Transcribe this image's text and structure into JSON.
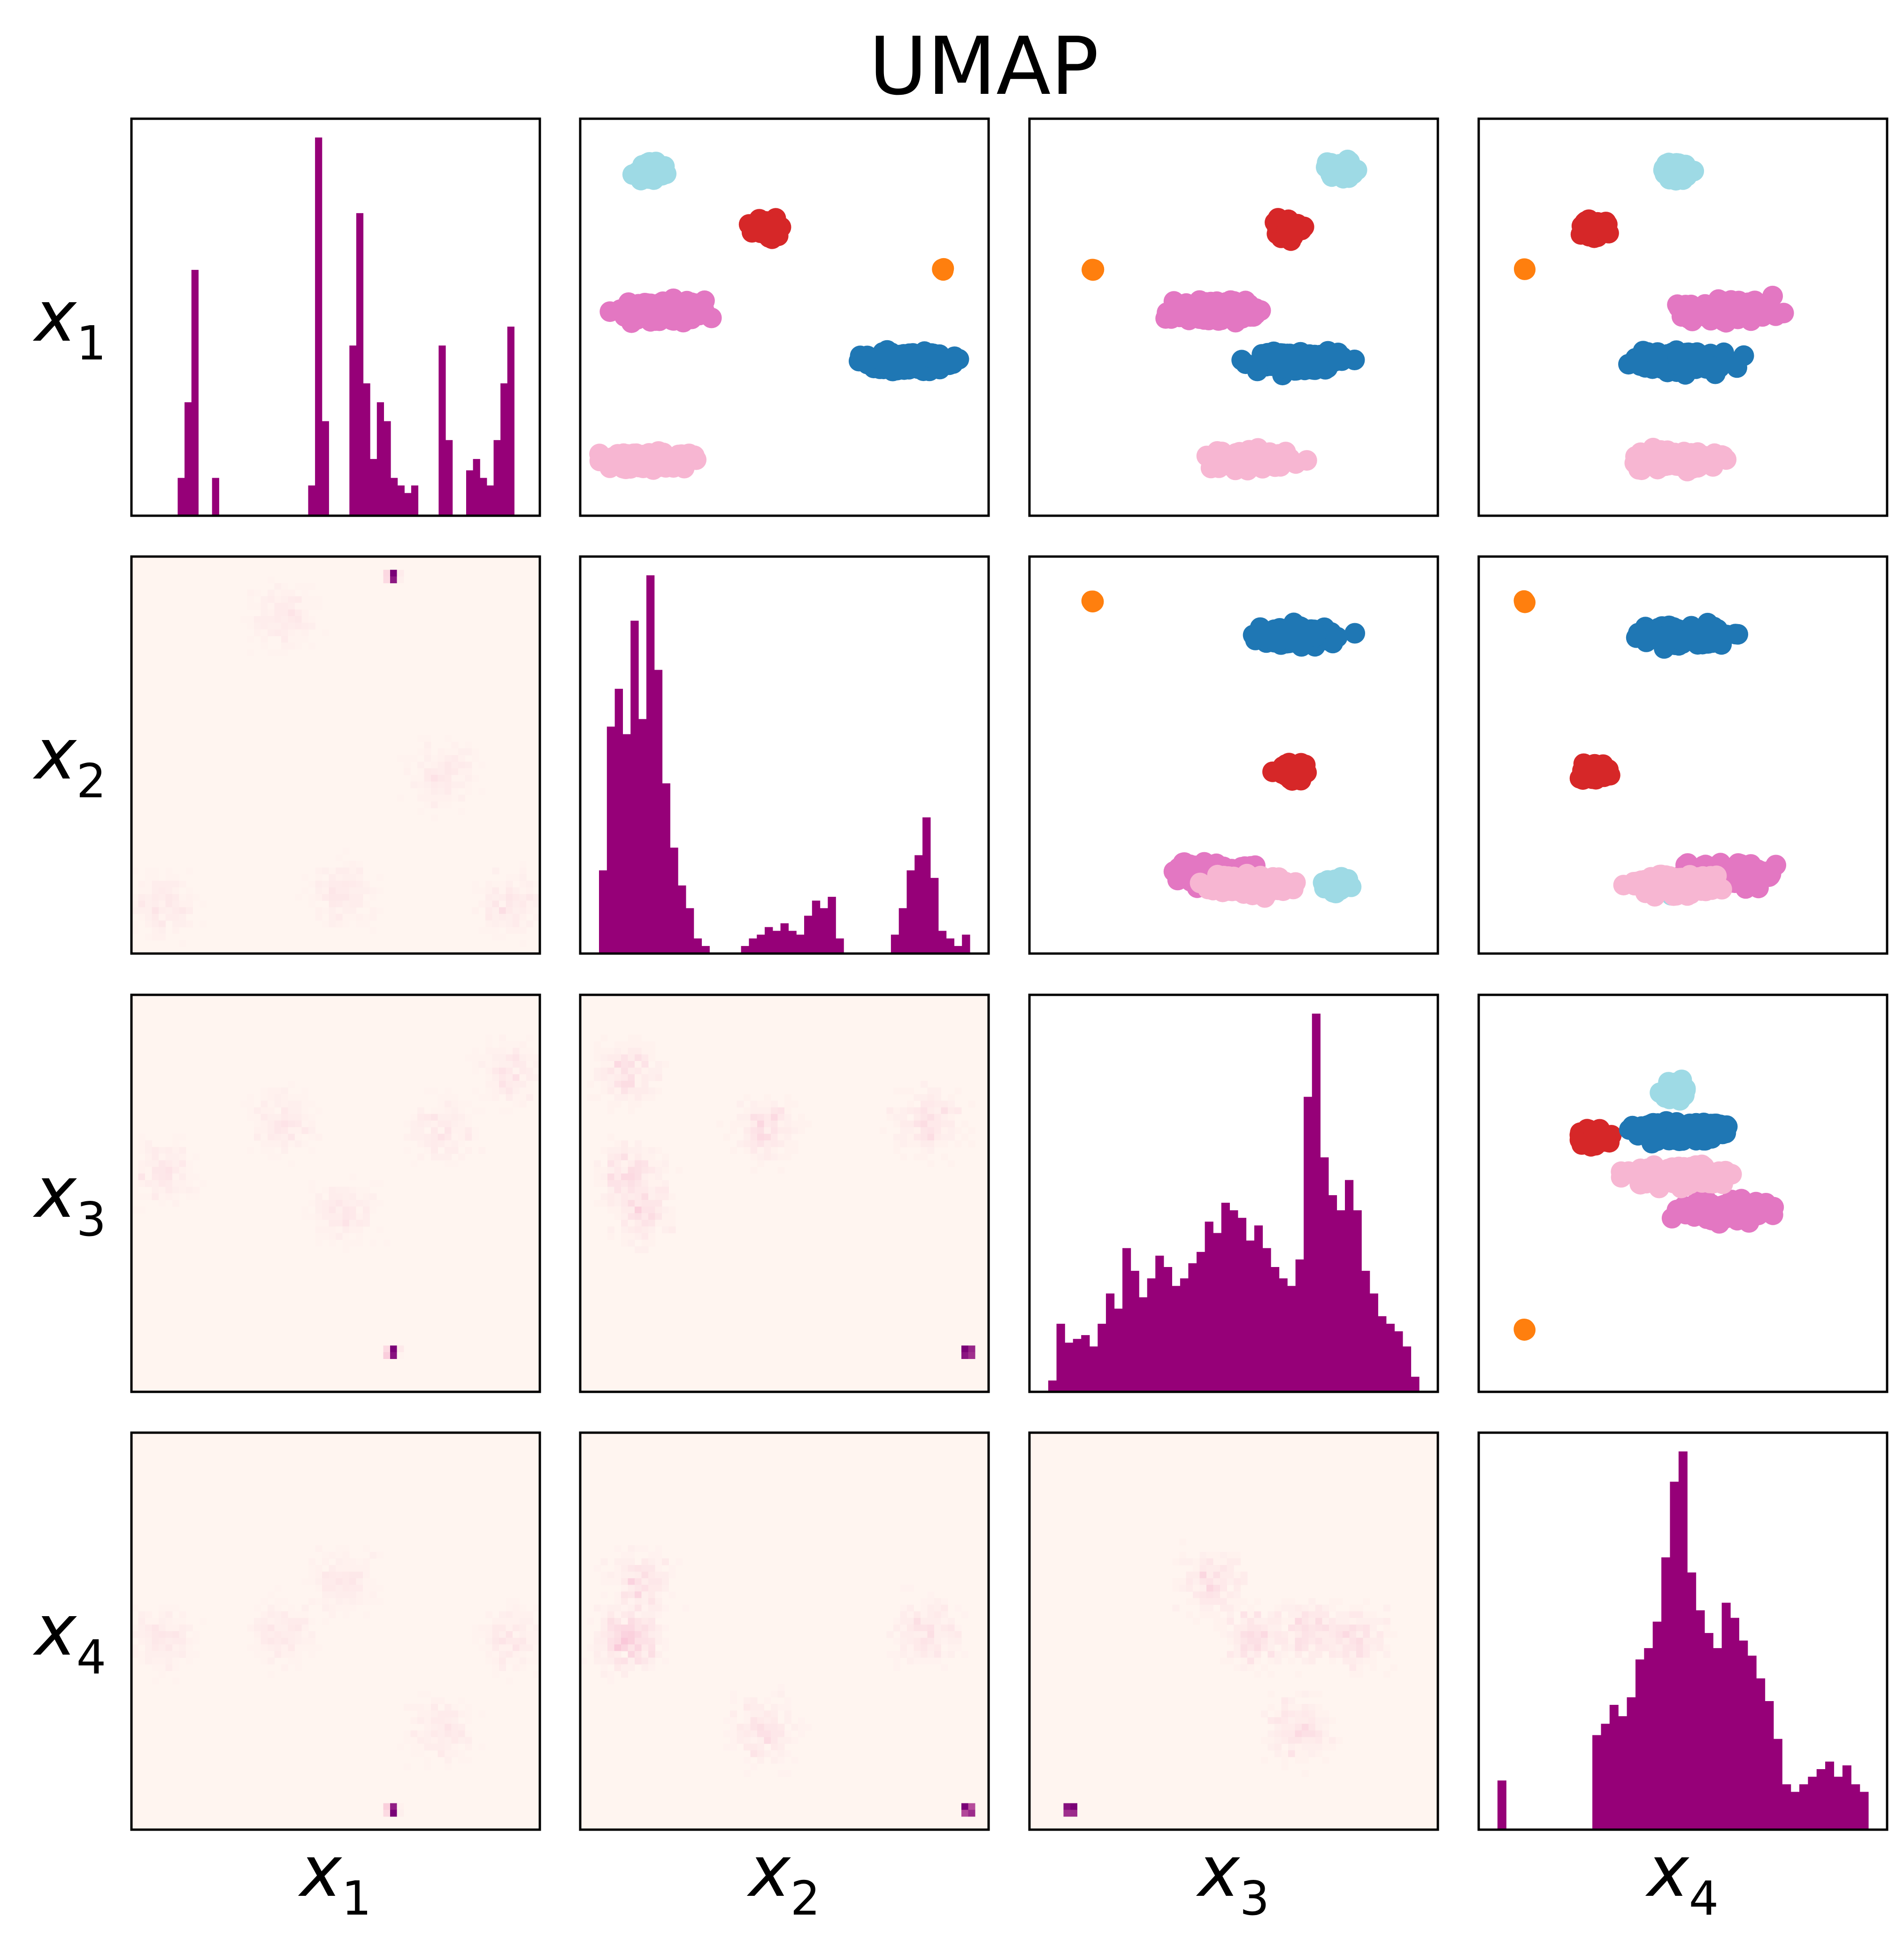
{
  "chart_data": {
    "type": "scatter",
    "title": "UMAP",
    "variables": [
      {
        "name": "x",
        "sub": "1"
      },
      {
        "name": "x",
        "sub": "2"
      },
      {
        "name": "x",
        "sub": "3"
      },
      {
        "name": "x",
        "sub": "4"
      }
    ],
    "colors": {
      "hist": "#960078",
      "heat_low": "#fff5f0",
      "heat_mid": "#f49ac1",
      "heat_high": "#7a0177",
      "blue": "#1f77b4",
      "orange": "#ff7f0e",
      "red": "#d62728",
      "pink": "#e377c2",
      "lightpink": "#f7b6d2",
      "cyan": "#9edae5"
    },
    "clusters": [
      {
        "color": "cyan",
        "x1": 0.93,
        "x2": 0.12,
        "x3": 0.8,
        "x4": 0.48
      },
      {
        "color": "red",
        "x1": 0.76,
        "x2": 0.45,
        "x3": 0.66,
        "x4": 0.25
      },
      {
        "color": "orange",
        "x1": 0.64,
        "x2": 0.95,
        "x3": 0.1,
        "x4": 0.05
      },
      {
        "color": "pink",
        "x1": 0.52,
        "x2": 0.15,
        "x3": 0.45,
        "x4": 0.62
      },
      {
        "color": "blue",
        "x1": 0.37,
        "x2": 0.85,
        "x3": 0.68,
        "x4": 0.5
      },
      {
        "color": "lightpink",
        "x1": 0.08,
        "x2": 0.12,
        "x3": 0.55,
        "x4": 0.48
      }
    ],
    "histograms": {
      "x1": [
        0,
        0,
        0,
        0,
        0.1,
        0.3,
        0.65,
        0,
        0,
        0.1,
        0,
        0,
        0,
        0,
        0,
        0,
        0,
        0,
        0,
        0,
        0,
        0,
        0,
        0.08,
        1.0,
        0.25,
        0,
        0,
        0,
        0.45,
        0.8,
        0.35,
        0.15,
        0.3,
        0.25,
        0.1,
        0.08,
        0.06,
        0.08,
        0,
        0,
        0,
        0.45,
        0.2,
        0,
        0,
        0.12,
        0.15,
        0.1,
        0.08,
        0.2,
        0.35,
        0.5,
        0
      ],
      "x2": [
        0.22,
        0.6,
        0.7,
        0.58,
        0.88,
        0.62,
        1.0,
        0.75,
        0.45,
        0.28,
        0.18,
        0.12,
        0.04,
        0.02,
        0,
        0,
        0,
        0,
        0.02,
        0.04,
        0.05,
        0.07,
        0.06,
        0.08,
        0.06,
        0.05,
        0.1,
        0.14,
        0.12,
        0.15,
        0.04,
        0,
        0,
        0,
        0,
        0,
        0,
        0.05,
        0.12,
        0.22,
        0.26,
        0.36,
        0.2,
        0.06,
        0.04,
        0.02,
        0.05
      ],
      "x3": [
        0.03,
        0.18,
        0.13,
        0.14,
        0.15,
        0.12,
        0.18,
        0.26,
        0.22,
        0.38,
        0.32,
        0.25,
        0.3,
        0.36,
        0.33,
        0.28,
        0.3,
        0.34,
        0.37,
        0.45,
        0.42,
        0.5,
        0.48,
        0.46,
        0.4,
        0.44,
        0.38,
        0.33,
        0.3,
        0.28,
        0.35,
        0.78,
        1.0,
        0.62,
        0.52,
        0.48,
        0.56,
        0.48,
        0.32,
        0.26,
        0.2,
        0.18,
        0.16,
        0.12,
        0.04
      ],
      "x4": [
        0.13,
        0,
        0,
        0,
        0,
        0,
        0,
        0,
        0,
        0,
        0,
        0.25,
        0.28,
        0.33,
        0.3,
        0.35,
        0.45,
        0.48,
        0.55,
        0.72,
        0.92,
        1.0,
        0.68,
        0.58,
        0.52,
        0.48,
        0.6,
        0.56,
        0.5,
        0.46,
        0.4,
        0.34,
        0.24,
        0.12,
        0.1,
        0.12,
        0.14,
        0.16,
        0.18,
        0.14,
        0.17,
        0.12,
        0.1
      ]
    }
  }
}
